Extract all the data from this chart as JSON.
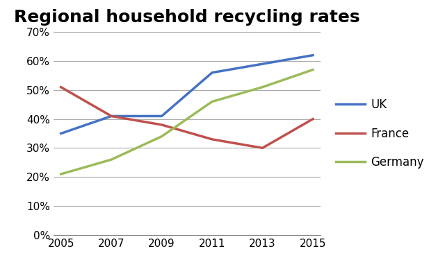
{
  "title": "Regional household recycling rates",
  "years": [
    2005,
    2007,
    2009,
    2011,
    2013,
    2015
  ],
  "series": [
    {
      "label": "UK",
      "color": "#4472C4",
      "values": [
        35,
        41,
        41,
        56,
        59,
        62
      ]
    },
    {
      "label": "France",
      "color": "#C0504D",
      "values": [
        51,
        41,
        38,
        33,
        30,
        40
      ]
    },
    {
      "label": "Germany",
      "color": "#9BBB59",
      "values": [
        21,
        26,
        34,
        46,
        51,
        57
      ]
    }
  ],
  "ylim": [
    0,
    70
  ],
  "yticks": [
    0,
    10,
    20,
    30,
    40,
    50,
    60,
    70
  ],
  "xticks": [
    2005,
    2007,
    2009,
    2011,
    2013,
    2015
  ],
  "title_fontsize": 18,
  "legend_fontsize": 12,
  "tick_fontsize": 11,
  "line_width": 2.5,
  "grid_color": "#AAAAAA",
  "background_color": "#FFFFFF"
}
